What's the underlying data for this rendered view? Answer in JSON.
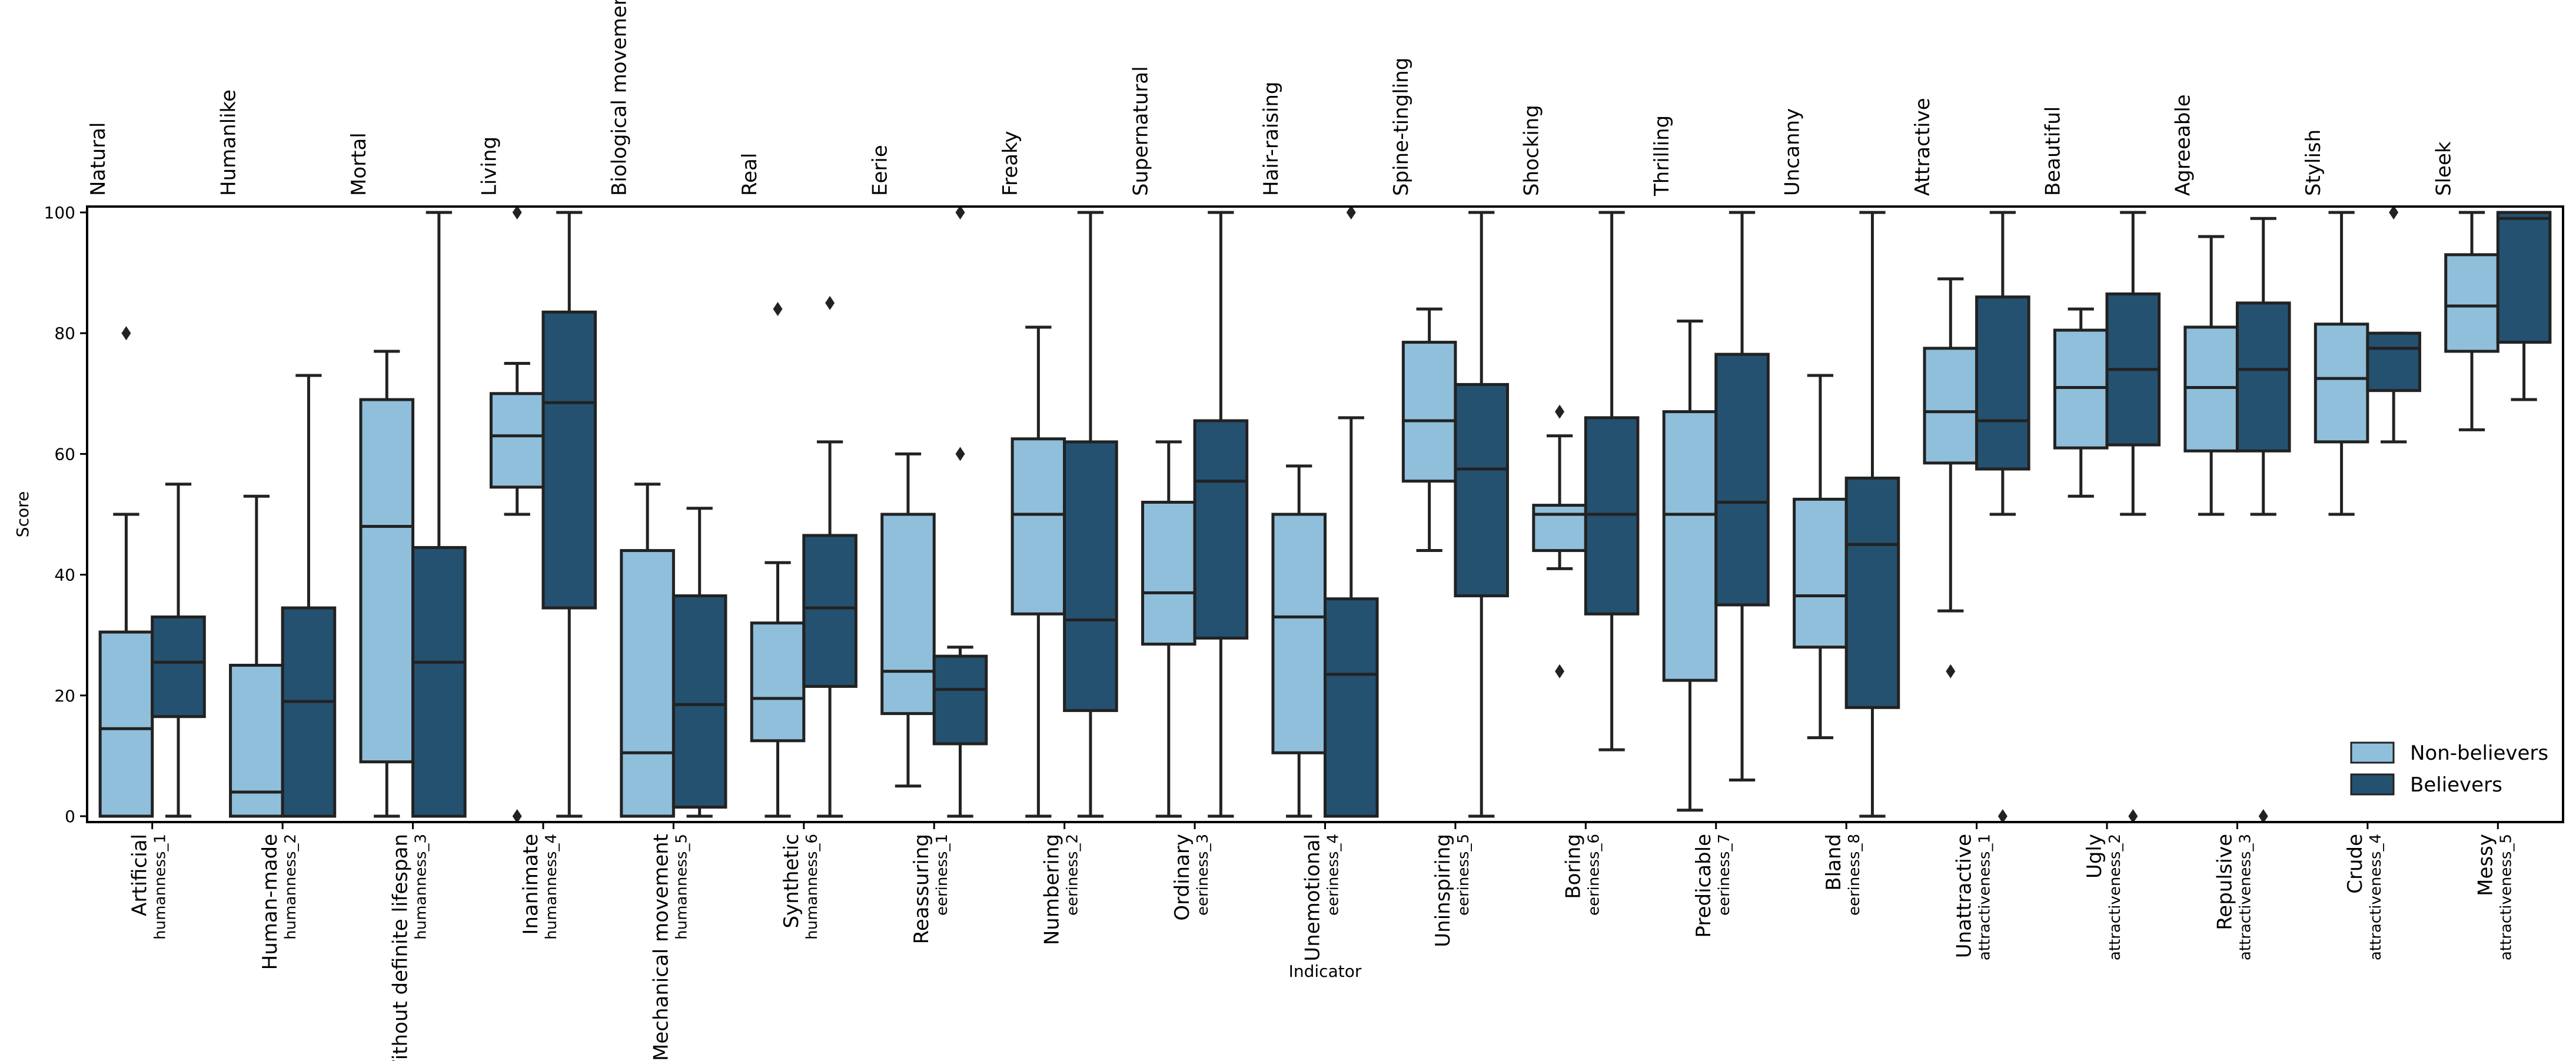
{
  "chart_data": {
    "type": "box",
    "ylabel": "Score",
    "xlabel": "Indicator",
    "ylim": [
      0,
      100
    ],
    "yticks": [
      0,
      20,
      40,
      60,
      80,
      100
    ],
    "grid": false,
    "legend_position": "bottom-right",
    "colors": {
      "Non-believers": "#8fbfdb",
      "Believers": "#245170",
      "edge": "#222222"
    },
    "series_names": [
      "Non-believers",
      "Believers"
    ],
    "indicators": [
      {
        "top": "Natural",
        "bottom": "Artificial",
        "code": "humanness_1",
        "boxes": [
          {
            "whislo": 0,
            "q1": 0,
            "med": 14.5,
            "q3": 30.5,
            "whishi": 50,
            "fliers": [
              80
            ]
          },
          {
            "whislo": 0,
            "q1": 16.5,
            "med": 25.5,
            "q3": 33,
            "whishi": 55,
            "fliers": []
          }
        ]
      },
      {
        "top": "Humanlike",
        "bottom": "Human-made",
        "code": "humanness_2",
        "boxes": [
          {
            "whislo": 0,
            "q1": 0,
            "med": 4,
            "q3": 25,
            "whishi": 53,
            "fliers": []
          },
          {
            "whislo": 0,
            "q1": 0,
            "med": 19,
            "q3": 34.5,
            "whishi": 73,
            "fliers": []
          }
        ]
      },
      {
        "top": "Mortal",
        "bottom": "Without definite lifespan",
        "code": "humanness_3",
        "boxes": [
          {
            "whislo": 0,
            "q1": 9,
            "med": 48,
            "q3": 69,
            "whishi": 77,
            "fliers": []
          },
          {
            "whislo": 0,
            "q1": 0,
            "med": 25.5,
            "q3": 44.5,
            "whishi": 100,
            "fliers": []
          }
        ]
      },
      {
        "top": "Living",
        "bottom": "Inanimate",
        "code": "humanness_4",
        "boxes": [
          {
            "whislo": 50,
            "q1": 54.5,
            "med": 63,
            "q3": 70,
            "whishi": 75,
            "fliers": [
              100,
              0
            ]
          },
          {
            "whislo": 0,
            "q1": 34.5,
            "med": 68.5,
            "q3": 83.5,
            "whishi": 100,
            "fliers": []
          }
        ]
      },
      {
        "top": "Biological movement",
        "bottom": "Mechanical movement",
        "code": "humanness_5",
        "boxes": [
          {
            "whislo": 0,
            "q1": 0,
            "med": 10.5,
            "q3": 44,
            "whishi": 55,
            "fliers": []
          },
          {
            "whislo": 0,
            "q1": 1.5,
            "med": 18.5,
            "q3": 36.5,
            "whishi": 51,
            "fliers": []
          }
        ]
      },
      {
        "top": "Real",
        "bottom": "Synthetic",
        "code": "humanness_6",
        "boxes": [
          {
            "whislo": 0,
            "q1": 12.5,
            "med": 19.5,
            "q3": 32,
            "whishi": 42,
            "fliers": [
              84
            ]
          },
          {
            "whislo": 0,
            "q1": 21.5,
            "med": 34.5,
            "q3": 46.5,
            "whishi": 62,
            "fliers": [
              85
            ]
          }
        ]
      },
      {
        "top": "Eerie",
        "bottom": "Reassuring",
        "code": "eeriness_1",
        "boxes": [
          {
            "whislo": 5,
            "q1": 17,
            "med": 24,
            "q3": 50,
            "whishi": 60,
            "fliers": []
          },
          {
            "whislo": 0,
            "q1": 12,
            "med": 21,
            "q3": 26.5,
            "whishi": 28,
            "fliers": [
              100,
              60
            ]
          }
        ]
      },
      {
        "top": "Freaky",
        "bottom": "Numbering",
        "code": "eeriness_2",
        "boxes": [
          {
            "whislo": 0,
            "q1": 33.5,
            "med": 50,
            "q3": 62.5,
            "whishi": 81,
            "fliers": []
          },
          {
            "whislo": 0,
            "q1": 17.5,
            "med": 32.5,
            "q3": 62,
            "whishi": 100,
            "fliers": []
          }
        ]
      },
      {
        "top": "Supernatural",
        "bottom": "Ordinary",
        "code": "eeriness_3",
        "boxes": [
          {
            "whislo": 0,
            "q1": 28.5,
            "med": 37,
            "q3": 52,
            "whishi": 62,
            "fliers": []
          },
          {
            "whislo": 0,
            "q1": 29.5,
            "med": 55.5,
            "q3": 65.5,
            "whishi": 100,
            "fliers": []
          }
        ]
      },
      {
        "top": "Hair-raising",
        "bottom": "Unemotional",
        "code": "eeriness_4",
        "boxes": [
          {
            "whislo": 0,
            "q1": 10.5,
            "med": 33,
            "q3": 50,
            "whishi": 58,
            "fliers": []
          },
          {
            "whislo": 0,
            "q1": 0,
            "med": 23.5,
            "q3": 36,
            "whishi": 66,
            "fliers": [
              100
            ]
          }
        ]
      },
      {
        "top": "Spine-tingling",
        "bottom": "Uninspiring",
        "code": "eeriness_5",
        "boxes": [
          {
            "whislo": 44,
            "q1": 55.5,
            "med": 65.5,
            "q3": 78.5,
            "whishi": 84,
            "fliers": []
          },
          {
            "whislo": 0,
            "q1": 36.5,
            "med": 57.5,
            "q3": 71.5,
            "whishi": 100,
            "fliers": []
          }
        ]
      },
      {
        "top": "Shocking",
        "bottom": "Boring",
        "code": "eeriness_6",
        "boxes": [
          {
            "whislo": 41,
            "q1": 44,
            "med": 50,
            "q3": 51.5,
            "whishi": 63,
            "fliers": [
              67,
              24
            ]
          },
          {
            "whislo": 11,
            "q1": 33.5,
            "med": 50,
            "q3": 66,
            "whishi": 100,
            "fliers": []
          }
        ]
      },
      {
        "top": "Thrilling",
        "bottom": "Predicable",
        "code": "eeriness_7",
        "boxes": [
          {
            "whislo": 1,
            "q1": 22.5,
            "med": 50,
            "q3": 67,
            "whishi": 82,
            "fliers": []
          },
          {
            "whislo": 6,
            "q1": 35,
            "med": 52,
            "q3": 76.5,
            "whishi": 100,
            "fliers": []
          }
        ]
      },
      {
        "top": "Uncanny",
        "bottom": "Bland",
        "code": "eeriness_8",
        "boxes": [
          {
            "whislo": 13,
            "q1": 28,
            "med": 36.5,
            "q3": 52.5,
            "whishi": 73,
            "fliers": []
          },
          {
            "whislo": 0,
            "q1": 18,
            "med": 45,
            "q3": 56,
            "whishi": 100,
            "fliers": []
          }
        ]
      },
      {
        "top": "Attractive",
        "bottom": "Unattractive",
        "code": "attractiveness_1",
        "boxes": [
          {
            "whislo": 34,
            "q1": 58.5,
            "med": 67,
            "q3": 77.5,
            "whishi": 89,
            "fliers": [
              24
            ]
          },
          {
            "whislo": 50,
            "q1": 57.5,
            "med": 65.5,
            "q3": 86,
            "whishi": 100,
            "fliers": [
              0
            ]
          }
        ]
      },
      {
        "top": "Beautiful",
        "bottom": "Ugly",
        "code": "attractiveness_2",
        "boxes": [
          {
            "whislo": 53,
            "q1": 61,
            "med": 71,
            "q3": 80.5,
            "whishi": 84,
            "fliers": []
          },
          {
            "whislo": 50,
            "q1": 61.5,
            "med": 74,
            "q3": 86.5,
            "whishi": 100,
            "fliers": [
              0
            ]
          }
        ]
      },
      {
        "top": "Agreeable",
        "bottom": "Repulsive",
        "code": "attractiveness_3",
        "boxes": [
          {
            "whislo": 50,
            "q1": 60.5,
            "med": 71,
            "q3": 81,
            "whishi": 96,
            "fliers": []
          },
          {
            "whislo": 50,
            "q1": 60.5,
            "med": 74,
            "q3": 85,
            "whishi": 99,
            "fliers": [
              0
            ]
          }
        ]
      },
      {
        "top": "Stylish",
        "bottom": "Crude",
        "code": "attractiveness_4",
        "boxes": [
          {
            "whislo": 50,
            "q1": 62,
            "med": 72.5,
            "q3": 81.5,
            "whishi": 100,
            "fliers": []
          },
          {
            "whislo": 62,
            "q1": 70.5,
            "med": 77.5,
            "q3": 80,
            "whishi": 80,
            "fliers": [
              100
            ]
          }
        ]
      },
      {
        "top": "Sleek",
        "bottom": "Messy",
        "code": "attractiveness_5",
        "boxes": [
          {
            "whislo": 64,
            "q1": 77,
            "med": 84.5,
            "q3": 93,
            "whishi": 100,
            "fliers": []
          },
          {
            "whislo": 69,
            "q1": 78.5,
            "med": 99,
            "q3": 100,
            "whishi": 100,
            "fliers": []
          }
        ]
      }
    ]
  }
}
